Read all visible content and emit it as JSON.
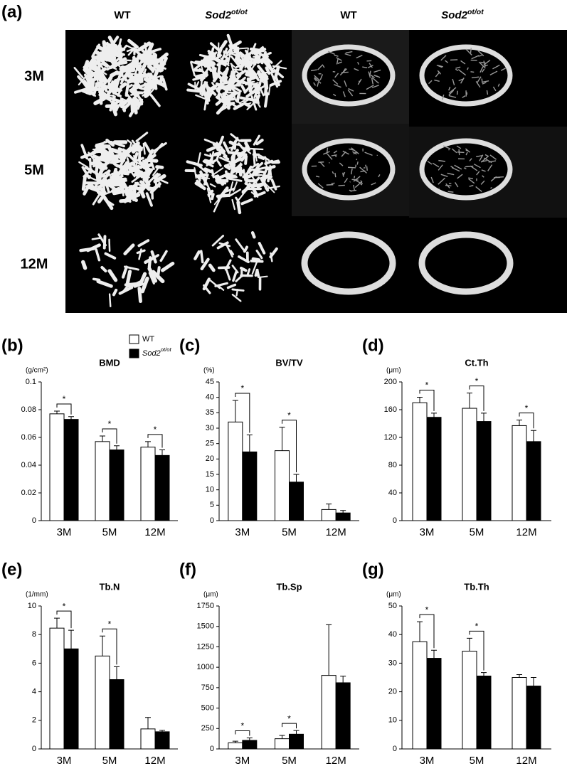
{
  "panel_a": {
    "label": "(a)",
    "columns": [
      {
        "name": "WT"
      },
      {
        "name": "Sod2",
        "superscript": "ot/ot"
      },
      {
        "name": "WT"
      },
      {
        "name": "Sod2",
        "superscript": "ot/ot"
      }
    ],
    "rows": [
      "3M",
      "5M",
      "12M"
    ]
  },
  "chart_data": [
    {
      "type": "bar",
      "label": "(b)",
      "title": "BMD",
      "unit": "(g/cm²)",
      "categories": [
        "3M",
        "5M",
        "12M"
      ],
      "series": [
        {
          "name": "WT",
          "color": "#ffffff",
          "values": [
            0.077,
            0.057,
            0.053
          ],
          "errors": [
            0.002,
            0.004,
            0.004
          ]
        },
        {
          "name": "Sod2",
          "name_superscript": "ot/ot",
          "color": "#000000",
          "values": [
            0.073,
            0.051,
            0.047
          ],
          "errors": [
            0.002,
            0.003,
            0.004
          ]
        }
      ],
      "ylim": [
        0,
        0.1
      ],
      "yticks": [
        0,
        0.02,
        0.04,
        0.06,
        0.08,
        0.1
      ],
      "legend": "top-right",
      "annotations": [
        {
          "text": "*",
          "category": 0
        },
        {
          "text": "*",
          "category": 1
        },
        {
          "text": "*",
          "category": 2
        }
      ]
    },
    {
      "type": "bar",
      "label": "(c)",
      "title": "BV/TV",
      "unit": "(%)",
      "categories": [
        "3M",
        "5M",
        "12M"
      ],
      "series": [
        {
          "name": "WT",
          "color": "#ffffff",
          "values": [
            32,
            22.7,
            3.6
          ],
          "errors": [
            7,
            7.6,
            1.8
          ]
        },
        {
          "name": "Sod2",
          "name_superscript": "ot/ot",
          "color": "#000000",
          "values": [
            22.3,
            12.5,
            2.5
          ],
          "errors": [
            5.5,
            2.5,
            0.8
          ]
        }
      ],
      "ylim": [
        0,
        45
      ],
      "yticks": [
        0,
        5,
        10,
        15,
        20,
        25,
        30,
        35,
        40,
        45
      ],
      "annotations": [
        {
          "text": "*",
          "category": 0
        },
        {
          "text": "*",
          "category": 1
        }
      ]
    },
    {
      "type": "bar",
      "label": "(d)",
      "title": "Ct.Th",
      "unit": "(μm)",
      "categories": [
        "3M",
        "5M",
        "12M"
      ],
      "series": [
        {
          "name": "WT",
          "color": "#ffffff",
          "values": [
            170,
            162,
            137
          ],
          "errors": [
            8,
            22,
            8
          ]
        },
        {
          "name": "Sod2",
          "name_superscript": "ot/ot",
          "color": "#000000",
          "values": [
            149,
            143,
            114
          ],
          "errors": [
            6,
            12,
            16
          ]
        }
      ],
      "ylim": [
        0,
        200
      ],
      "yticks": [
        0,
        40,
        80,
        120,
        160,
        200
      ],
      "annotations": [
        {
          "text": "*",
          "category": 0
        },
        {
          "text": "*",
          "category": 1
        },
        {
          "text": "*",
          "category": 2
        }
      ]
    },
    {
      "type": "bar",
      "label": "(e)",
      "title": "Tb.N",
      "unit": "(1/mm)",
      "categories": [
        "3M",
        "5M",
        "12M"
      ],
      "series": [
        {
          "name": "WT",
          "color": "#ffffff",
          "values": [
            8.45,
            6.5,
            1.4
          ],
          "errors": [
            0.7,
            1.4,
            0.8
          ]
        },
        {
          "name": "Sod2",
          "name_superscript": "ot/ot",
          "color": "#000000",
          "values": [
            7.0,
            4.85,
            1.2
          ],
          "errors": [
            1.3,
            0.9,
            0.1
          ]
        }
      ],
      "ylim": [
        0,
        10
      ],
      "yticks": [
        0,
        2,
        4,
        6,
        8,
        10
      ],
      "annotations": [
        {
          "text": "*",
          "category": 0
        },
        {
          "text": "*",
          "category": 1
        }
      ]
    },
    {
      "type": "bar",
      "label": "(f)",
      "title": "Tb.Sp",
      "unit": "(μm)",
      "categories": [
        "3M",
        "5M",
        "12M"
      ],
      "series": [
        {
          "name": "WT",
          "color": "#ffffff",
          "values": [
            75,
            125,
            900
          ],
          "errors": [
            20,
            40,
            620
          ]
        },
        {
          "name": "Sod2",
          "name_superscript": "ot/ot",
          "color": "#000000",
          "values": [
            105,
            180,
            810
          ],
          "errors": [
            30,
            45,
            80
          ]
        }
      ],
      "ylim": [
        0,
        1750
      ],
      "yticks": [
        0,
        250,
        500,
        750,
        1000,
        1250,
        1500,
        1750
      ],
      "annotations": [
        {
          "text": "*",
          "category": 0
        },
        {
          "text": "*",
          "category": 1
        }
      ]
    },
    {
      "type": "bar",
      "label": "(g)",
      "title": "Tb.Th",
      "unit": "(μm)",
      "categories": [
        "3M",
        "5M",
        "12M"
      ],
      "series": [
        {
          "name": "WT",
          "color": "#ffffff",
          "values": [
            37.5,
            34.2,
            25
          ],
          "errors": [
            7,
            4.5,
            1
          ]
        },
        {
          "name": "Sod2",
          "name_superscript": "ot/ot",
          "color": "#000000",
          "values": [
            31.7,
            25.5,
            22
          ],
          "errors": [
            2.8,
            1.2,
            3
          ]
        }
      ],
      "ylim": [
        0,
        50
      ],
      "yticks": [
        0,
        10,
        20,
        30,
        40,
        50
      ],
      "annotations": [
        {
          "text": "*",
          "category": 0
        },
        {
          "text": "*",
          "category": 1
        }
      ]
    }
  ]
}
